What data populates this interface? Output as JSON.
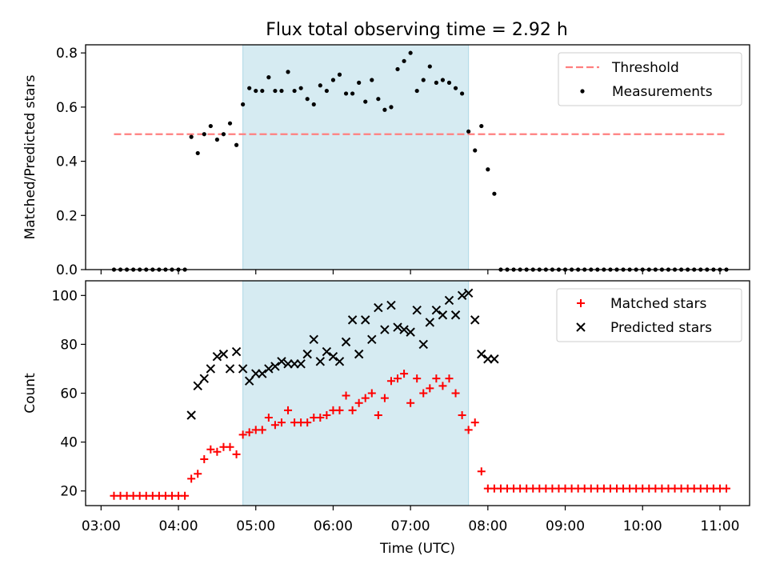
{
  "title": "Flux total observing time = 2.92 h",
  "colors": {
    "threshold": "#ff7f7f",
    "measurement": "#000000",
    "matched": "#ff0000",
    "predicted": "#000000",
    "span": "#add8e6"
  },
  "chart_data": [
    {
      "type": "scatter",
      "ylabel": "Matched/Predicted stars",
      "ylim": [
        0,
        0.83
      ],
      "yticks": [
        0.0,
        0.2,
        0.4,
        0.6,
        0.8
      ],
      "ytick_labels": [
        "0.0",
        "0.2",
        "0.4",
        "0.6",
        "0.8"
      ],
      "xlim": [
        "02:48",
        "11:23"
      ],
      "highlight_span": [
        "04:50",
        "07:45"
      ],
      "legend": {
        "position": "upper right",
        "entries": [
          "Threshold",
          "Measurements"
        ]
      },
      "threshold": {
        "name": "Threshold",
        "value": 0.5,
        "x_range": [
          "03:10",
          "11:05"
        ]
      },
      "series": [
        {
          "name": "Measurements",
          "marker": "dot",
          "x": [
            "03:10",
            "03:15",
            "03:20",
            "03:25",
            "03:30",
            "03:35",
            "03:40",
            "03:45",
            "03:50",
            "03:55",
            "04:00",
            "04:05",
            "04:10",
            "04:15",
            "04:20",
            "04:25",
            "04:30",
            "04:35",
            "04:40",
            "04:45",
            "04:50",
            "04:55",
            "05:00",
            "05:05",
            "05:10",
            "05:15",
            "05:20",
            "05:25",
            "05:30",
            "05:35",
            "05:40",
            "05:45",
            "05:50",
            "05:55",
            "06:00",
            "06:05",
            "06:10",
            "06:15",
            "06:20",
            "06:25",
            "06:30",
            "06:35",
            "06:40",
            "06:45",
            "06:50",
            "06:55",
            "07:00",
            "07:05",
            "07:10",
            "07:15",
            "07:20",
            "07:25",
            "07:30",
            "07:35",
            "07:40",
            "07:45",
            "07:50",
            "07:55",
            "08:00",
            "08:05",
            "08:10",
            "08:15",
            "08:20",
            "08:25",
            "08:30",
            "08:35",
            "08:40",
            "08:45",
            "08:50",
            "08:55",
            "09:00",
            "09:05",
            "09:10",
            "09:15",
            "09:20",
            "09:25",
            "09:30",
            "09:35",
            "09:40",
            "09:45",
            "09:50",
            "09:55",
            "10:00",
            "10:05",
            "10:10",
            "10:15",
            "10:20",
            "10:25",
            "10:30",
            "10:35",
            "10:40",
            "10:45",
            "10:50",
            "10:55",
            "11:00",
            "11:05"
          ],
          "y": [
            0,
            0,
            0,
            0,
            0,
            0,
            0,
            0,
            0,
            0,
            0,
            0,
            0.49,
            0.43,
            0.5,
            0.53,
            0.48,
            0.5,
            0.54,
            0.46,
            0.61,
            0.67,
            0.66,
            0.66,
            0.71,
            0.66,
            0.66,
            0.73,
            0.66,
            0.67,
            0.63,
            0.61,
            0.68,
            0.66,
            0.7,
            0.72,
            0.65,
            0.65,
            0.69,
            0.62,
            0.7,
            0.63,
            0.59,
            0.6,
            0.74,
            0.77,
            0.8,
            0.66,
            0.7,
            0.75,
            0.69,
            0.7,
            0.69,
            0.67,
            0.65,
            0.51,
            0.44,
            0.53,
            0.37,
            0.28,
            0,
            0,
            0,
            0,
            0,
            0,
            0,
            0,
            0,
            0,
            0,
            0,
            0,
            0,
            0,
            0,
            0,
            0,
            0,
            0,
            0,
            0,
            0,
            0,
            0,
            0,
            0,
            0,
            0,
            0,
            0,
            0,
            0,
            0,
            0,
            0
          ]
        }
      ]
    },
    {
      "type": "scatter",
      "xlabel": "Time (UTC)",
      "ylabel": "Count",
      "ylim": [
        14,
        106
      ],
      "yticks": [
        20,
        40,
        60,
        80,
        100
      ],
      "ytick_labels": [
        "20",
        "40",
        "60",
        "80",
        "100"
      ],
      "xlim": [
        "02:48",
        "11:23"
      ],
      "xticks": [
        "03:00",
        "04:00",
        "05:00",
        "06:00",
        "07:00",
        "08:00",
        "09:00",
        "10:00",
        "11:00"
      ],
      "highlight_span": [
        "04:50",
        "07:45"
      ],
      "legend": {
        "position": "upper right",
        "entries": [
          "Matched stars",
          "Predicted stars"
        ]
      },
      "series": [
        {
          "name": "Matched stars",
          "marker": "plus",
          "x": [
            "03:10",
            "03:15",
            "03:20",
            "03:25",
            "03:30",
            "03:35",
            "03:40",
            "03:45",
            "03:50",
            "03:55",
            "04:00",
            "04:05",
            "04:10",
            "04:15",
            "04:20",
            "04:25",
            "04:30",
            "04:35",
            "04:40",
            "04:45",
            "04:50",
            "04:55",
            "05:00",
            "05:05",
            "05:10",
            "05:15",
            "05:20",
            "05:25",
            "05:30",
            "05:35",
            "05:40",
            "05:45",
            "05:50",
            "05:55",
            "06:00",
            "06:05",
            "06:10",
            "06:15",
            "06:20",
            "06:25",
            "06:30",
            "06:35",
            "06:40",
            "06:45",
            "06:50",
            "06:55",
            "07:00",
            "07:05",
            "07:10",
            "07:15",
            "07:20",
            "07:25",
            "07:30",
            "07:35",
            "07:40",
            "07:45",
            "07:50",
            "07:55",
            "08:00",
            "08:05",
            "08:10",
            "08:15",
            "08:20",
            "08:25",
            "08:30",
            "08:35",
            "08:40",
            "08:45",
            "08:50",
            "08:55",
            "09:00",
            "09:05",
            "09:10",
            "09:15",
            "09:20",
            "09:25",
            "09:30",
            "09:35",
            "09:40",
            "09:45",
            "09:50",
            "09:55",
            "10:00",
            "10:05",
            "10:10",
            "10:15",
            "10:20",
            "10:25",
            "10:30",
            "10:35",
            "10:40",
            "10:45",
            "10:50",
            "10:55",
            "11:00",
            "11:05"
          ],
          "y": [
            18,
            18,
            18,
            18,
            18,
            18,
            18,
            18,
            18,
            18,
            18,
            18,
            25,
            27,
            33,
            37,
            36,
            38,
            38,
            35,
            43,
            44,
            45,
            45,
            50,
            47,
            48,
            53,
            48,
            48,
            48,
            50,
            50,
            51,
            53,
            53,
            59,
            53,
            56,
            58,
            60,
            51,
            58,
            65,
            66,
            68,
            56,
            66,
            60,
            62,
            66,
            63,
            66,
            60,
            51,
            45,
            48,
            28,
            21,
            21,
            21,
            21,
            21,
            21,
            21,
            21,
            21,
            21,
            21,
            21,
            21,
            21,
            21,
            21,
            21,
            21,
            21,
            21,
            21,
            21,
            21,
            21,
            21,
            21,
            21,
            21,
            21,
            21,
            21,
            21,
            21,
            21,
            21,
            21,
            21,
            21
          ]
        },
        {
          "name": "Predicted stars",
          "marker": "x",
          "x": [
            "04:10",
            "04:15",
            "04:20",
            "04:25",
            "04:30",
            "04:35",
            "04:40",
            "04:45",
            "04:50",
            "04:55",
            "05:00",
            "05:05",
            "05:10",
            "05:15",
            "05:20",
            "05:25",
            "05:30",
            "05:35",
            "05:40",
            "05:45",
            "05:50",
            "05:55",
            "06:00",
            "06:05",
            "06:10",
            "06:15",
            "06:20",
            "06:25",
            "06:30",
            "06:35",
            "06:40",
            "06:45",
            "06:50",
            "06:55",
            "07:00",
            "07:05",
            "07:10",
            "07:15",
            "07:20",
            "07:25",
            "07:30",
            "07:35",
            "07:40",
            "07:45",
            "07:50",
            "07:55",
            "08:00",
            "08:05"
          ],
          "y": [
            51,
            63,
            66,
            70,
            75,
            76,
            70,
            77,
            70,
            65,
            68,
            68,
            70,
            71,
            73,
            72,
            72,
            72,
            76,
            82,
            73,
            77,
            75,
            73,
            81,
            90,
            76,
            90,
            82,
            95,
            86,
            96,
            87,
            86,
            85,
            94,
            80,
            89,
            94,
            92,
            98,
            92,
            100,
            101,
            90,
            76,
            74,
            74
          ]
        }
      ]
    }
  ]
}
